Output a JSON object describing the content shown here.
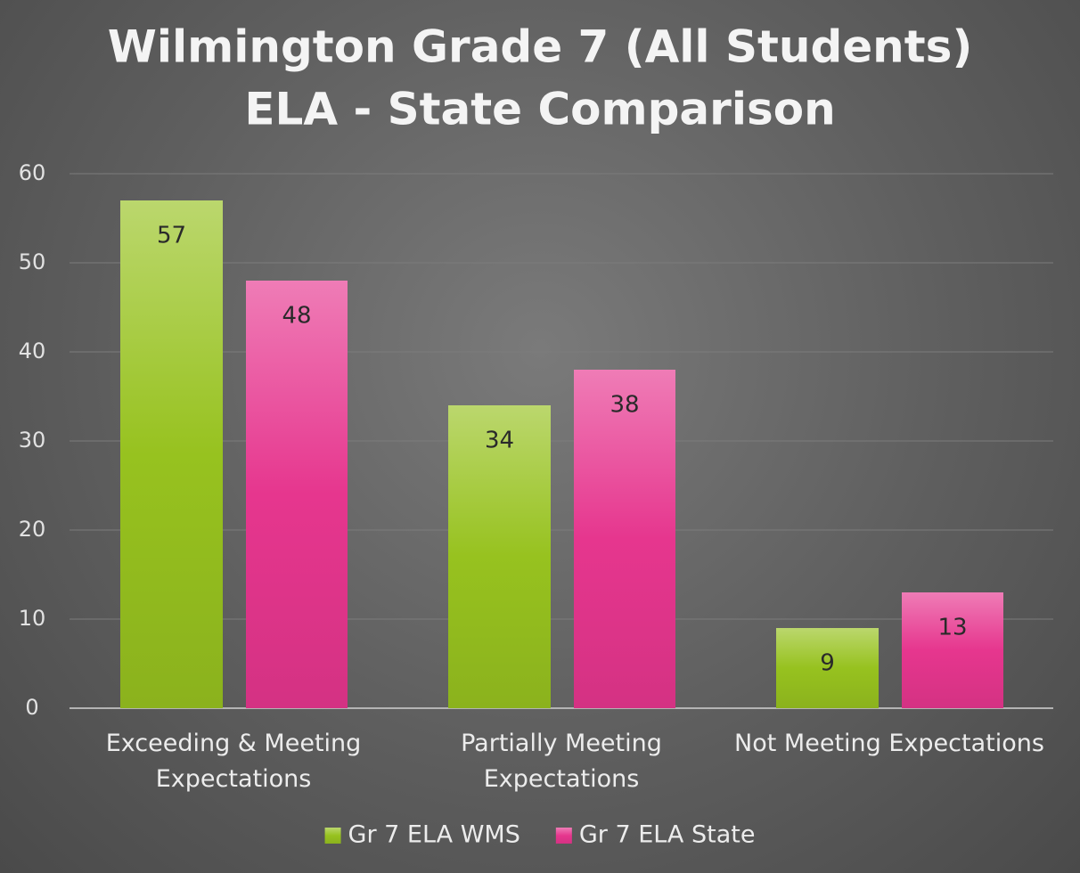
{
  "chart_data": {
    "type": "bar",
    "title": [
      "Wilmington Grade 7 (All Students)",
      "ELA - State Comparison"
    ],
    "categories": [
      "Exceeding & Meeting Expectations",
      "Partially Meeting Expectations",
      "Not Meeting Expectations"
    ],
    "series": [
      {
        "name": "Gr 7 ELA WMS",
        "color": "#97c21f",
        "values": [
          57,
          34,
          9
        ]
      },
      {
        "name": "Gr 7 ELA State",
        "color": "#e6368e",
        "values": [
          48,
          38,
          13
        ]
      }
    ],
    "ylim": [
      0,
      60
    ],
    "yticks": [
      0,
      10,
      20,
      30,
      40,
      50,
      60
    ],
    "grid": true,
    "legend": "bottom"
  }
}
